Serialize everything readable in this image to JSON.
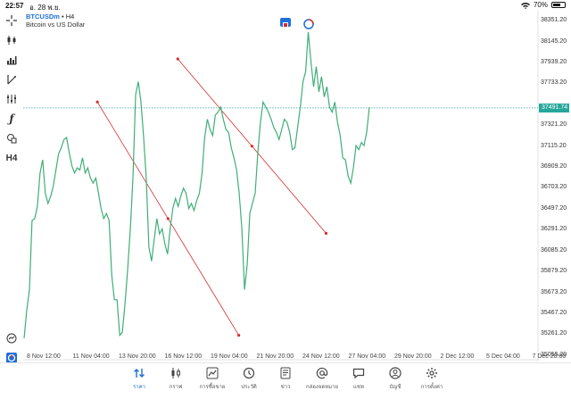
{
  "status": {
    "time": "22:57",
    "date": "อ. 28 พ.ย.",
    "battery": "70%",
    "battery_level": 0.7
  },
  "symbol": {
    "ticker": "BTCUSDm",
    "separator": " • ",
    "timeframe": "H4",
    "description": "Bitcoin vs US Dollar"
  },
  "toolbar": {
    "timeframe_label": "H4"
  },
  "price_axis": {
    "labels": [
      "38351.20",
      "38145.20",
      "37939.20",
      "37733.20",
      "37321.20",
      "37115.20",
      "36909.20",
      "36703.20",
      "36497.20",
      "36291.20",
      "36085.20",
      "35879.20",
      "35673.20",
      "35467.20",
      "35261.20",
      "35055.20"
    ],
    "current_price": "37491.74"
  },
  "time_axis": {
    "labels": [
      "8 Nov 12:00",
      "11 Nov 04:00",
      "13 Nov 20:00",
      "16 Nov 12:00",
      "19 Nov 04:00",
      "21 Nov 20:00",
      "24 Nov 12:00",
      "27 Nov 04:00",
      "29 Nov 20:00",
      "2 Dec 12:00",
      "5 Dec 04:00",
      "7 Dec 20:00"
    ]
  },
  "chart_data": {
    "type": "line",
    "y_range": [
      35000,
      38450
    ],
    "x_range": [
      "2023-11-07 08:00",
      "2023-12-08 08:00"
    ],
    "series": [
      {
        "values": [
          35220,
          35500,
          35700,
          36380,
          36400,
          36520,
          36850,
          36980,
          36650,
          36550,
          36620,
          36720,
          36880,
          37040,
          37100,
          37180,
          37200,
          37050,
          36920,
          36850,
          36900,
          36880,
          37000,
          36850,
          36900,
          36800,
          36750,
          36800,
          36650,
          36500,
          36400,
          36450,
          36380,
          35850,
          35600,
          35600,
          35250,
          35280,
          35560,
          35900,
          36300,
          36820,
          37620,
          37750,
          37550,
          37200,
          36800,
          36120,
          35980,
          36200,
          36400,
          36250,
          36300,
          36150,
          36050,
          36300,
          36500,
          36600,
          36520,
          36620,
          36700,
          36650,
          36500,
          36550,
          36480,
          36580,
          36650,
          36850,
          37200,
          37380,
          37280,
          37220,
          37420,
          37450,
          37500,
          37380,
          37280,
          37250,
          37100,
          37000,
          36880,
          36650,
          36300,
          35700,
          35950,
          36450,
          36550,
          36650,
          37050,
          37350,
          37550,
          37500,
          37450,
          37380,
          37300,
          37250,
          37180,
          37280,
          37380,
          37350,
          37250,
          37080,
          37100,
          37300,
          37500,
          37750,
          37850,
          38240,
          37950,
          37700,
          37900,
          37650,
          37800,
          37600,
          37700,
          37500,
          37450,
          37550,
          37350,
          37220,
          37000,
          36980,
          36820,
          36750,
          36900,
          37120,
          37080,
          37150,
          37120,
          37250,
          37500
        ]
      }
    ],
    "trendlines": [
      {
        "p1": [
          "2023-11-11 19:00",
          37550
        ],
        "p2": [
          "2023-11-20 07:00",
          35250
        ]
      },
      {
        "p1": [
          "2023-11-16 15:00",
          37975
        ],
        "p2": [
          "2023-11-25 13:00",
          36255
        ]
      }
    ],
    "current_price_line": 37491.74
  },
  "tabs": [
    {
      "name": "tab-quotes",
      "icon": "arrows-updown-icon",
      "label": "ราคา",
      "active": true
    },
    {
      "name": "tab-chart",
      "icon": "candles-icon",
      "label": "กราฟ",
      "active": false
    },
    {
      "name": "tab-trade",
      "icon": "trade-chart-icon",
      "label": "การซื้อขาย",
      "active": false
    },
    {
      "name": "tab-history",
      "icon": "history-icon",
      "label": "ประวัติ",
      "active": false
    },
    {
      "name": "tab-news",
      "icon": "news-icon",
      "label": "ข่าว",
      "active": false
    },
    {
      "name": "tab-mailbox",
      "icon": "at-icon",
      "label": "กล่องจดหมาย",
      "active": false
    },
    {
      "name": "tab-chat",
      "icon": "chat-icon",
      "label": "แชท",
      "active": false
    },
    {
      "name": "tab-accounts",
      "icon": "user-icon",
      "label": "บัญชี",
      "active": false
    },
    {
      "name": "tab-settings",
      "icon": "gear-icon",
      "label": "การตั้งค่า",
      "active": false
    }
  ],
  "colors": {
    "line": "#3fae78",
    "trend": "#d32f2f",
    "accent": "#1e6fd9",
    "price_tag": "#26a69a"
  }
}
